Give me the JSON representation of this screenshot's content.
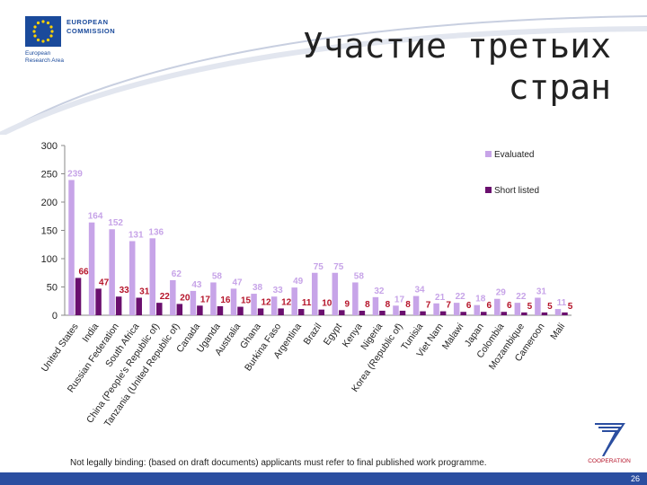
{
  "header": {
    "title_line1": "Участие третьих",
    "title_line2": "стран",
    "logo_line1": "EUROPEAN",
    "logo_line2": "COMMISSION",
    "logo_sub1": "European",
    "logo_sub2": "Research Area"
  },
  "footer": {
    "note": "Not legally binding: (based on draft documents) applicants must refer to final published work programme.",
    "page_number": "26",
    "fp7_label": "COOPERATION"
  },
  "colors": {
    "evaluated": "#c7a4e8",
    "shortlisted": "#6a0f6e",
    "evaluated_label": "#c7a4e8",
    "shortlisted_label": "#b5142a"
  },
  "chart_data": {
    "type": "bar",
    "categories": [
      "United States",
      "India",
      "Russian Federation",
      "South Africa",
      "China (People's Republic of)",
      "Tanzania (United Republic of)",
      "Canada",
      "Uganda",
      "Australia",
      "Ghana",
      "Burkina Faso",
      "Argentina",
      "Brazil",
      "Egypt",
      "Kenya",
      "Nigeria",
      "Korea (Republic of)",
      "Tunisia",
      "Viet Nam",
      "Malawi",
      "Japan",
      "Colombia",
      "Mozambique",
      "Cameroon",
      "Mali"
    ],
    "series": [
      {
        "name": "Evaluated",
        "values": [
          239,
          164,
          152,
          131,
          136,
          62,
          43,
          58,
          47,
          38,
          33,
          49,
          75,
          75,
          58,
          32,
          17,
          34,
          21,
          22,
          18,
          29,
          22,
          31,
          11
        ]
      },
      {
        "name": "Short listed",
        "values": [
          66,
          47,
          33,
          31,
          22,
          20,
          17,
          16,
          15,
          12,
          12,
          11,
          10,
          9,
          8,
          8,
          8,
          7,
          7,
          6,
          6,
          6,
          5,
          5,
          5
        ]
      }
    ],
    "ylim": [
      0,
      300
    ],
    "yticks": [
      "0",
      "50",
      "100",
      "150",
      "200",
      "250",
      "300"
    ],
    "legend": [
      "Evaluated",
      "Short listed"
    ],
    "legend_position": "top-right",
    "grid": false
  }
}
